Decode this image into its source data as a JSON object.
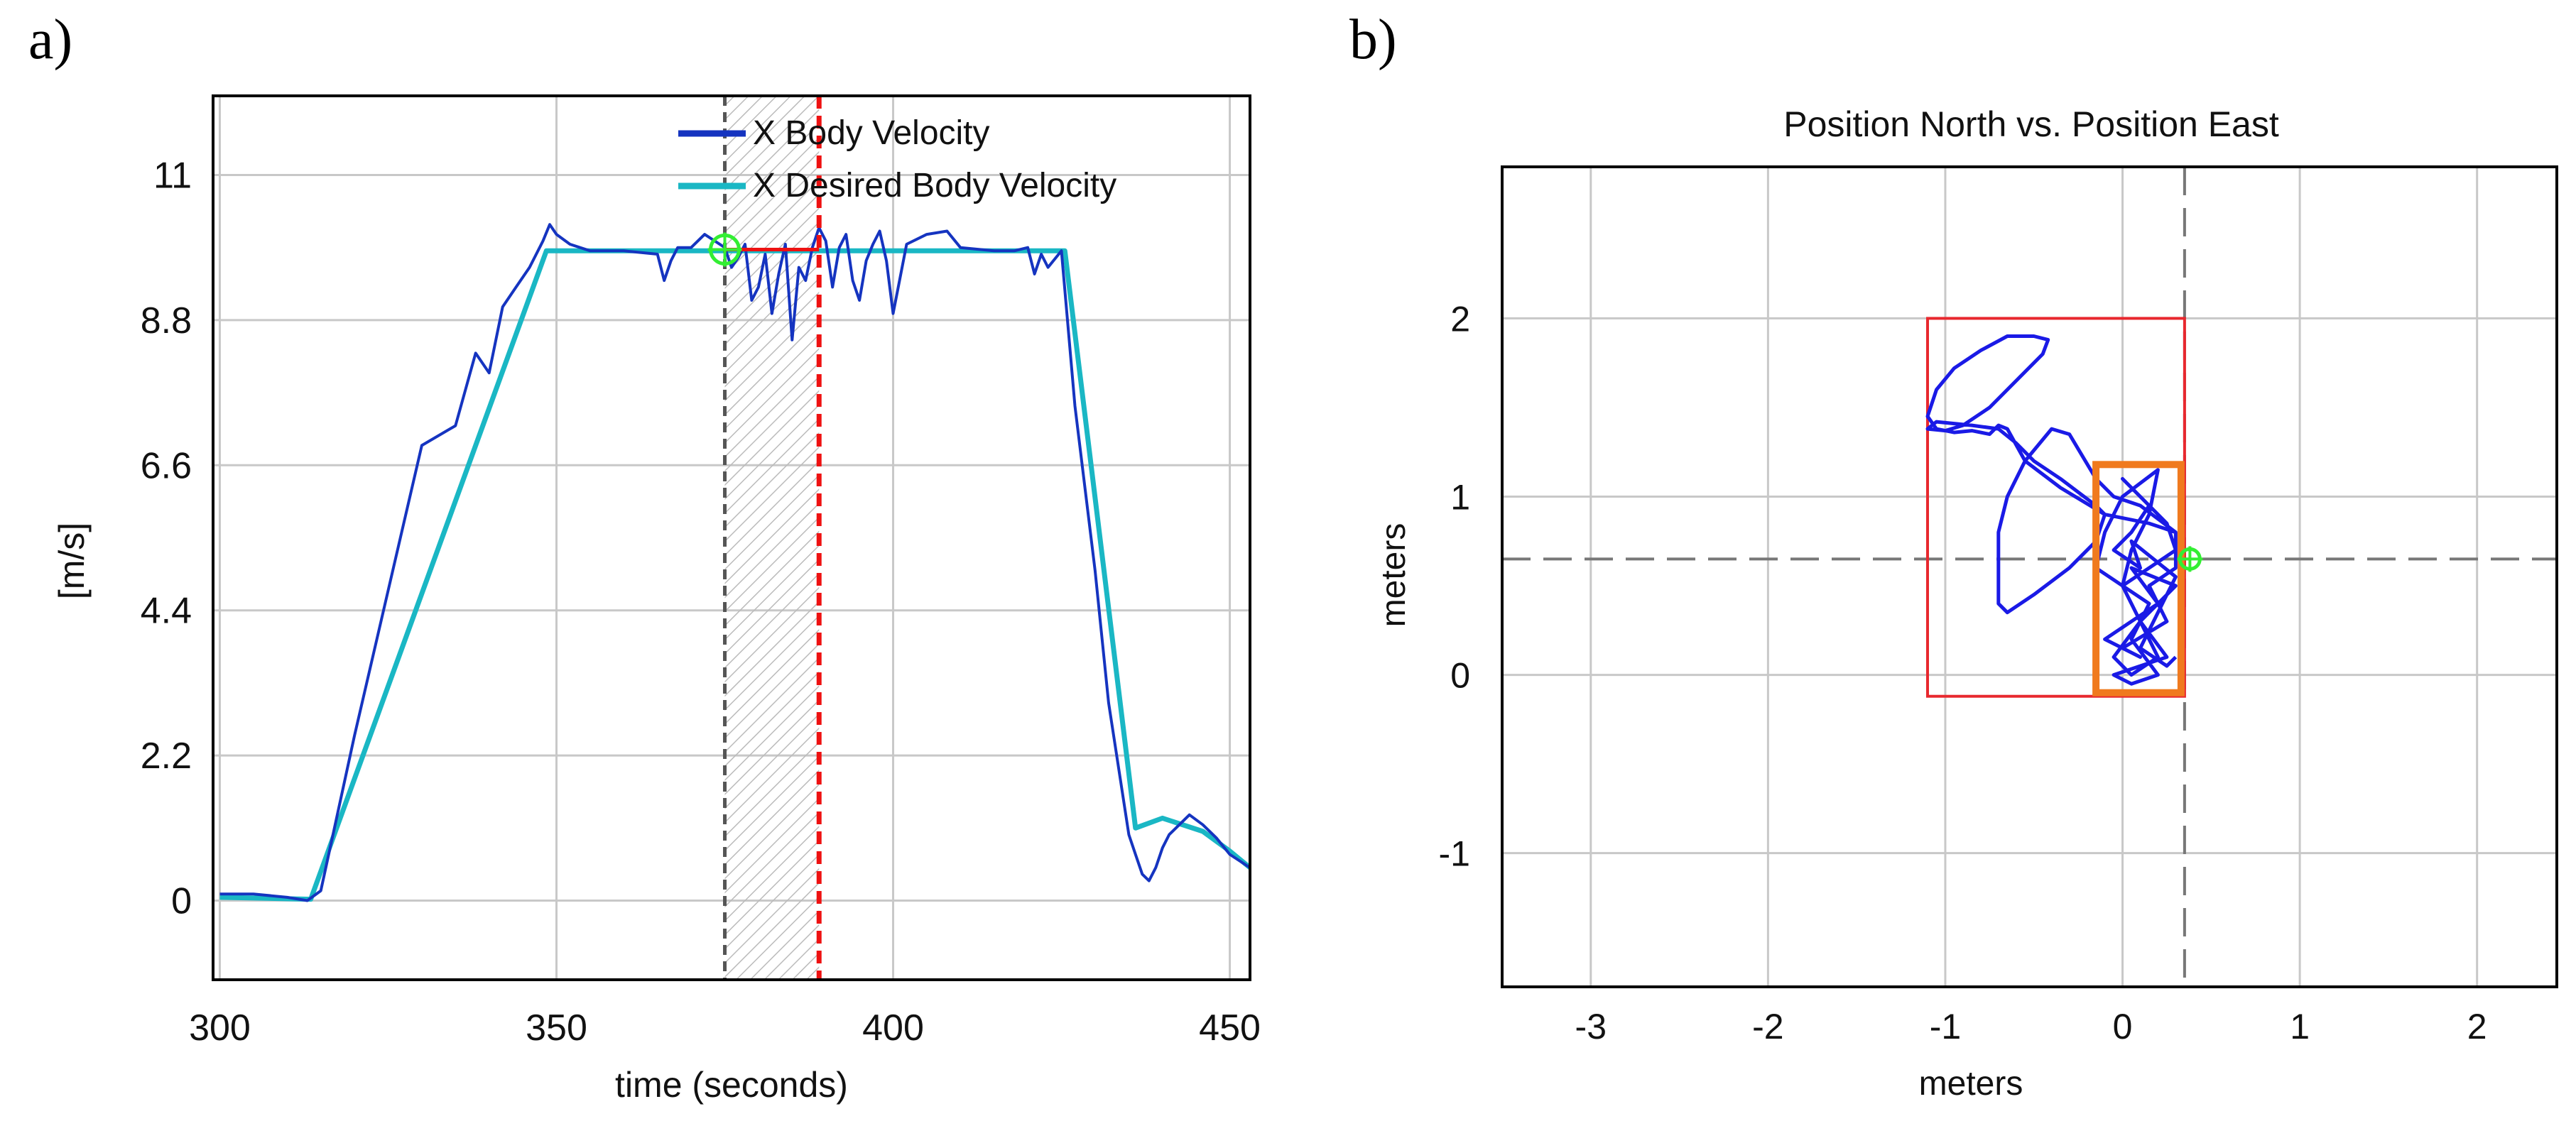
{
  "panels": {
    "a_label": "a)",
    "b_label": "b)"
  },
  "chart_data": [
    {
      "type": "line",
      "title": "",
      "xlabel": "time (seconds)",
      "ylabel": "[m/s]",
      "xlim": [
        299,
        453
      ],
      "ylim": [
        -1.2,
        12.2
      ],
      "xticks": [
        300,
        350,
        400,
        450
      ],
      "yticks": [
        0,
        2.2,
        4.4,
        6.6,
        8.8,
        11
      ],
      "ytick_labels": [
        "0",
        "2.2",
        "4.4",
        "6.6",
        "8.8",
        "11"
      ],
      "grid": true,
      "legend_position": "top-right",
      "highlight_window": {
        "x_start": 375,
        "x_end": 389,
        "y": 9.87
      },
      "marker": {
        "x": 375,
        "y": 9.87
      },
      "series": [
        {
          "name": "X Desired Body Velocity",
          "color": "#1ab7c4",
          "x": [
            300,
            313.5,
            348.5,
            425.5,
            436,
            440,
            446,
            450,
            453
          ],
          "y": [
            0.05,
            0.02,
            9.85,
            9.85,
            1.1,
            1.25,
            1.05,
            0.75,
            0.5
          ]
        },
        {
          "name": "X Body Velocity",
          "color": "#1534c0",
          "x": [
            300,
            305,
            310,
            313,
            315,
            320,
            325,
            330,
            335,
            338,
            340,
            342,
            344,
            346,
            348,
            349,
            350,
            352,
            355,
            360,
            365,
            366,
            367,
            368,
            370,
            372,
            375,
            376,
            377,
            378,
            379,
            380,
            381,
            382,
            383,
            384,
            385,
            386,
            387,
            388,
            389,
            390,
            391,
            392,
            393,
            394,
            395,
            396,
            397,
            398,
            399,
            400,
            402,
            405,
            408,
            410,
            415,
            418,
            420,
            421,
            422,
            423,
            425,
            427,
            430,
            432,
            435,
            436,
            437,
            438,
            439,
            440,
            441,
            442,
            444,
            446,
            448,
            450,
            453
          ],
          "y": [
            0.1,
            0.1,
            0.05,
            0.0,
            0.15,
            2.5,
            4.7,
            6.9,
            7.2,
            8.3,
            8.0,
            9.0,
            9.3,
            9.6,
            10.0,
            10.25,
            10.1,
            9.95,
            9.85,
            9.85,
            9.8,
            9.4,
            9.7,
            9.9,
            9.9,
            10.1,
            9.9,
            9.6,
            9.75,
            9.95,
            9.1,
            9.3,
            9.8,
            8.9,
            9.5,
            9.95,
            8.5,
            9.6,
            9.4,
            9.9,
            10.2,
            10.0,
            9.3,
            9.9,
            10.1,
            9.4,
            9.1,
            9.7,
            9.95,
            10.15,
            9.7,
            8.9,
            9.95,
            10.1,
            10.15,
            9.9,
            9.85,
            9.85,
            9.9,
            9.5,
            9.8,
            9.6,
            9.85,
            7.5,
            5.0,
            3.0,
            1.0,
            0.7,
            0.4,
            0.3,
            0.5,
            0.8,
            1.0,
            1.1,
            1.3,
            1.15,
            0.95,
            0.7,
            0.5
          ]
        }
      ]
    },
    {
      "type": "line",
      "title": "Position North vs. Position East",
      "xlabel": "meters",
      "ylabel": "meters",
      "xlim": [
        -3.5,
        2.45
      ],
      "ylim": [
        -1.75,
        2.85
      ],
      "xticks": [
        -3,
        -2,
        -1,
        0,
        1,
        2
      ],
      "yticks": [
        -1,
        0,
        1,
        2
      ],
      "grid": true,
      "reference_lines": {
        "x": 0.35,
        "y": 0.65
      },
      "outer_box": {
        "x_min": -1.1,
        "x_max": 0.35,
        "y_min": -0.12,
        "y_max": 2.0
      },
      "inner_box": {
        "x_min": -0.15,
        "x_max": 0.33,
        "y_min": -0.1,
        "y_max": 1.18
      },
      "marker": {
        "x": 0.38,
        "y": 0.65
      },
      "series": [
        {
          "name": "Position",
          "color": "#1a1ae6",
          "x": [
            0.3,
            0.15,
            -0.1,
            -0.35,
            -0.55,
            -0.65,
            -0.7,
            -0.75,
            -0.85,
            -0.95,
            -1.05,
            -1.1,
            -1.05,
            -0.95,
            -0.8,
            -0.65,
            -0.5,
            -0.42,
            -0.45,
            -0.6,
            -0.75,
            -0.9,
            -1.0,
            -1.1,
            -1.05,
            -0.85,
            -0.7,
            -0.6,
            -0.5,
            -0.35,
            -0.15,
            -0.1,
            -0.15,
            -0.3,
            -0.5,
            -0.65,
            -0.7,
            -0.7,
            -0.7,
            -0.65,
            -0.55,
            -0.4,
            -0.3,
            -0.15,
            -0.05,
            0.1,
            0.3,
            0.3,
            0.15,
            0.25,
            0.0,
            0.1,
            -0.1,
            0.2,
            0.05,
            0.3,
            0.1,
            0.25,
            -0.05,
            0.05,
            0.2,
            0.05,
            0.15,
            -0.15,
            -0.1,
            0.0,
            0.2,
            0.15,
            0.05,
            0.0,
            0.1,
            -0.05,
            0.05,
            0.2,
            0.1,
            0.0,
            0.3,
            0.25,
            0.1,
            0.0,
            0.15,
            0.05,
            -0.05,
            0.1,
            0.05,
            0.3,
            0.2,
            0.1,
            0.25,
            0.3
          ],
          "y": [
            0.8,
            0.85,
            0.9,
            1.05,
            1.2,
            1.38,
            1.4,
            1.35,
            1.37,
            1.36,
            1.38,
            1.45,
            1.6,
            1.72,
            1.82,
            1.9,
            1.9,
            1.88,
            1.8,
            1.65,
            1.5,
            1.4,
            1.37,
            1.38,
            1.42,
            1.4,
            1.38,
            1.3,
            1.2,
            1.1,
            0.95,
            0.9,
            0.75,
            0.6,
            0.45,
            0.35,
            0.4,
            0.6,
            0.8,
            1.0,
            1.2,
            1.38,
            1.35,
            1.1,
            1.0,
            0.95,
            0.8,
            0.6,
            0.5,
            0.3,
            0.15,
            0.1,
            0.2,
            0.4,
            0.6,
            0.5,
            0.3,
            0.1,
            0.0,
            -0.05,
            0.0,
            0.2,
            0.4,
            0.6,
            0.8,
            1.0,
            1.15,
            0.9,
            0.7,
            0.5,
            0.3,
            0.1,
            0.0,
            0.1,
            0.3,
            0.5,
            0.7,
            0.85,
            1.0,
            1.1,
            0.95,
            0.8,
            0.7,
            0.6,
            0.75,
            0.55,
            0.35,
            0.15,
            0.05,
            0.1
          ]
        }
      ]
    }
  ]
}
